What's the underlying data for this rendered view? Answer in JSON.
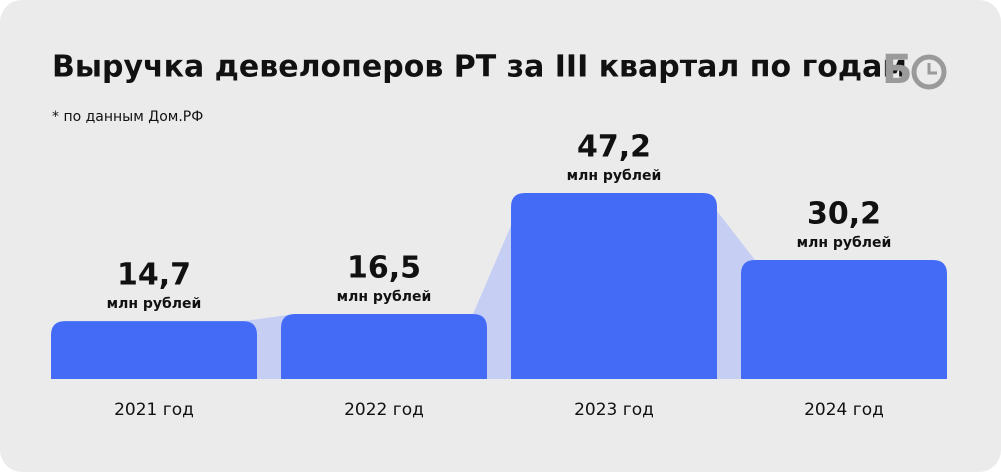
{
  "chart_data": {
    "type": "bar",
    "title": "Выручка девелоперов РТ за III квартал по годам",
    "subtitle": "* по данным Дом.РФ",
    "logo": "Б",
    "unit": "млн рублей",
    "categories": [
      "2021 год",
      "2022 год",
      "2023 год",
      "2024 год"
    ],
    "values": [
      14.7,
      16.5,
      47.2,
      30.2
    ],
    "value_labels": [
      "14,7",
      "16,5",
      "47,2",
      "30,2"
    ],
    "color": "#436bf5",
    "connector_color": "#c6cff3",
    "ylim": [
      0,
      50
    ]
  }
}
